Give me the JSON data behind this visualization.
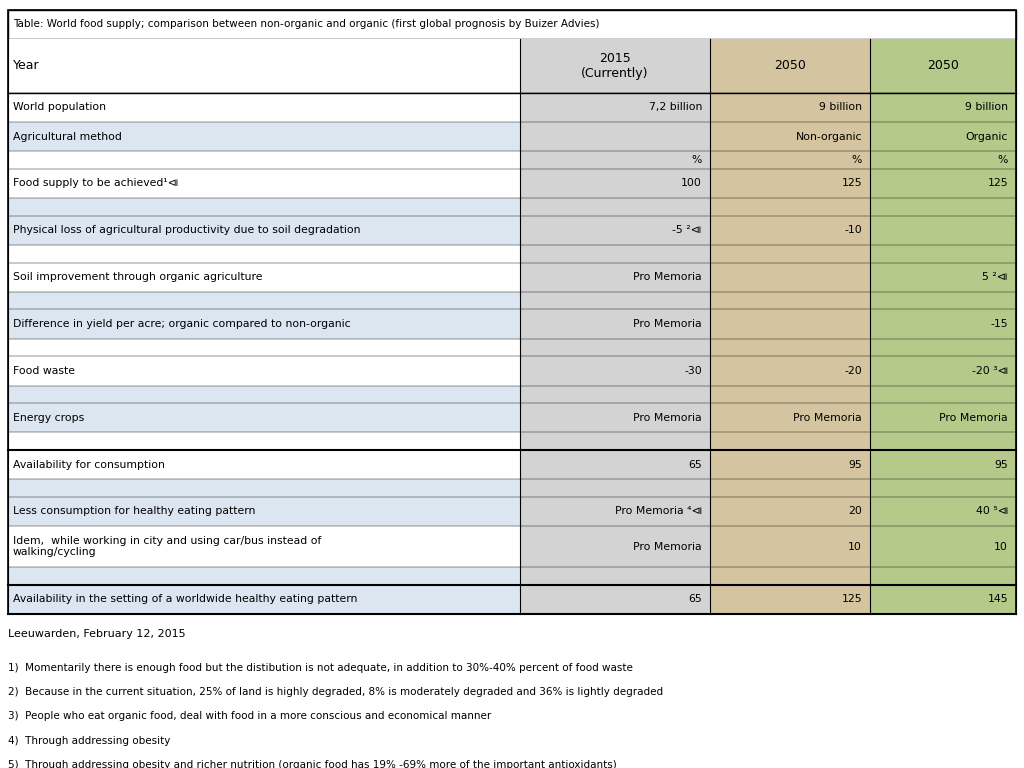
{
  "title": "Table: World food supply; comparison between non-organic and organic (first global prognosis by Buizer Advies)",
  "footer": "Leeuwarden, February 12, 2015",
  "footnotes": [
    "1)  Momentarily there is enough food but the distibution is not adequate, in addition to 30%-40% percent of food waste",
    "2)  Because in the current situation, 25% of land is highly degraded, 8% is moderately degraded and 36% is lightly degraded",
    "3)  People who eat organic food, deal with food in a more conscious and economical manner",
    "4)  Through addressing obesity",
    "5)  Through addressing obesity and richer nutrition (organic food has 19% -69% more of the important antioxidants)"
  ],
  "col_headers": [
    {
      "text": "Year",
      "col": 0
    },
    {
      "text": "2015\n(Currently)",
      "col": 1
    },
    {
      "text": "2050",
      "col": 2
    },
    {
      "text": "2050",
      "col": 3
    }
  ],
  "rows": [
    {
      "label": "World population",
      "col1": "7,2 billion",
      "col2": "9 billion",
      "col3": "9 billion",
      "bold_border_top": false,
      "bold_border_bottom": false
    },
    {
      "label": "Agricultural method",
      "col1": "",
      "col2": "Non-organic",
      "col3": "Organic",
      "bold_border_top": false,
      "bold_border_bottom": false
    },
    {
      "label": "",
      "col1": "%",
      "col2": "%",
      "col3": "%",
      "bold_border_top": false,
      "bold_border_bottom": false
    },
    {
      "label": "Food supply to be achieved¹⧏",
      "col1": "100",
      "col2": "125",
      "col3": "125",
      "bold_border_top": false,
      "bold_border_bottom": false
    },
    {
      "label": "",
      "col1": "",
      "col2": "",
      "col3": "",
      "bold_border_top": false,
      "bold_border_bottom": false
    },
    {
      "label": "Physical loss of agricultural productivity due to soil degradation",
      "col1": "-5 ²⧏",
      "col2": "-10",
      "col3": "",
      "bold_border_top": false,
      "bold_border_bottom": false
    },
    {
      "label": "",
      "col1": "",
      "col2": "",
      "col3": "",
      "bold_border_top": false,
      "bold_border_bottom": false
    },
    {
      "label": "Soil improvement through organic agriculture",
      "col1": "Pro Memoria",
      "col2": "",
      "col3": "5 ²⧏",
      "bold_border_top": false,
      "bold_border_bottom": false
    },
    {
      "label": "",
      "col1": "",
      "col2": "",
      "col3": "",
      "bold_border_top": false,
      "bold_border_bottom": false
    },
    {
      "label": "Difference in yield per acre; organic compared to non-organic",
      "col1": "Pro Memoria",
      "col2": "",
      "col3": "-15",
      "bold_border_top": false,
      "bold_border_bottom": false
    },
    {
      "label": "",
      "col1": "",
      "col2": "",
      "col3": "",
      "bold_border_top": false,
      "bold_border_bottom": false
    },
    {
      "label": "Food waste",
      "col1": "-30",
      "col2": "-20",
      "col3": "-20 ³⧏",
      "bold_border_top": false,
      "bold_border_bottom": false
    },
    {
      "label": "",
      "col1": "",
      "col2": "",
      "col3": "",
      "bold_border_top": false,
      "bold_border_bottom": false
    },
    {
      "label": "Energy crops",
      "col1": "Pro Memoria",
      "col2": "Pro Memoria",
      "col3": "Pro Memoria",
      "bold_border_top": false,
      "bold_border_bottom": false
    },
    {
      "label": "",
      "col1": "",
      "col2": "",
      "col3": "",
      "bold_border_top": false,
      "bold_border_bottom": false
    },
    {
      "label": "Availability for consumption",
      "col1": "65",
      "col2": "95",
      "col3": "95",
      "bold_border_top": true,
      "bold_border_bottom": false
    },
    {
      "label": "",
      "col1": "",
      "col2": "",
      "col3": "",
      "bold_border_top": false,
      "bold_border_bottom": false
    },
    {
      "label": "Less consumption for healthy eating pattern",
      "col1": "Pro Memoria ⁴⧏",
      "col2": "20",
      "col3": "40 ⁵⧏",
      "bold_border_top": false,
      "bold_border_bottom": false
    },
    {
      "label": "Idem,  while working in city and using car/bus instead of\nwalking/cycling",
      "col1": "Pro Memoria",
      "col2": "10",
      "col3": "10",
      "bold_border_top": false,
      "bold_border_bottom": false
    },
    {
      "label": "",
      "col1": "",
      "col2": "",
      "col3": "",
      "bold_border_top": false,
      "bold_border_bottom": false
    },
    {
      "label": "Availability in the setting of a worldwide healthy eating pattern",
      "col1": "65",
      "col2": "125",
      "col3": "145",
      "bold_border_top": true,
      "bold_border_bottom": true
    }
  ],
  "col_colors": {
    "col0": "#ffffff",
    "col1": "#d3d3d3",
    "col2": "#d4c5a0",
    "col3": "#b5c98a"
  },
  "stripe_color": "#dce6f1",
  "header_bg": "#ffffff",
  "text_color": "#000000",
  "border_color": "#000000"
}
